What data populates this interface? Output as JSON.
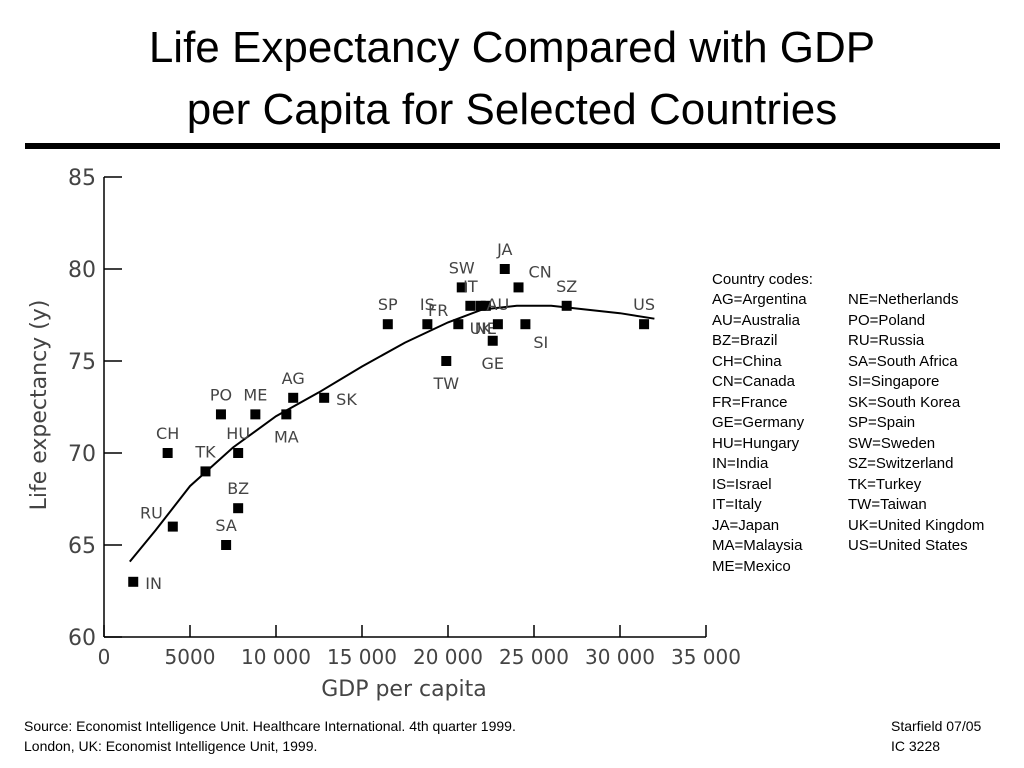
{
  "title": {
    "line1": "Life Expectancy Compared with GDP",
    "line2": "per Capita for Selected Countries"
  },
  "chart_data": {
    "type": "scatter",
    "xlabel": "GDP per capita",
    "ylabel": "Life expectancy (y)",
    "xlim": [
      0,
      35000
    ],
    "ylim": [
      60,
      85
    ],
    "x_ticks": [
      0,
      5000,
      10000,
      15000,
      20000,
      25000,
      30000,
      35000
    ],
    "x_tick_labels": [
      "0",
      "5000",
      "10 000",
      "15 000",
      "20 000",
      "25 000",
      "30 000",
      "35 000"
    ],
    "y_ticks": [
      60,
      65,
      70,
      75,
      80,
      85
    ],
    "y_tick_labels": [
      "60",
      "65",
      "70",
      "75",
      "80",
      "85"
    ],
    "grid": false,
    "points": [
      {
        "label": "IN",
        "x": 1700,
        "y": 63.0,
        "label_side": "right"
      },
      {
        "label": "RU",
        "x": 4000,
        "y": 66.0,
        "label_side": "above-left"
      },
      {
        "label": "CH",
        "x": 3700,
        "y": 70.0,
        "label_side": "above"
      },
      {
        "label": "SA",
        "x": 7100,
        "y": 65.0,
        "label_side": "above"
      },
      {
        "label": "BZ",
        "x": 7800,
        "y": 67.0,
        "label_side": "above"
      },
      {
        "label": "TK",
        "x": 5900,
        "y": 69.0,
        "label_side": "above"
      },
      {
        "label": "HU",
        "x": 7800,
        "y": 70.0,
        "label_side": "above"
      },
      {
        "label": "PO",
        "x": 6800,
        "y": 72.1,
        "label_side": "above"
      },
      {
        "label": "ME",
        "x": 8800,
        "y": 72.1,
        "label_side": "above"
      },
      {
        "label": "MA",
        "x": 10600,
        "y": 72.1,
        "label_side": "below"
      },
      {
        "label": "AG",
        "x": 11000,
        "y": 73.0,
        "label_side": "above"
      },
      {
        "label": "SK",
        "x": 12800,
        "y": 73.0,
        "label_side": "right"
      },
      {
        "label": "SP",
        "x": 16500,
        "y": 77.0,
        "label_side": "above"
      },
      {
        "label": "IS",
        "x": 18800,
        "y": 77.0,
        "label_side": "above"
      },
      {
        "label": "TW",
        "x": 19900,
        "y": 75.0,
        "label_side": "below"
      },
      {
        "label": "FR",
        "x": 20600,
        "y": 77.0,
        "label_side": "above-left"
      },
      {
        "label": "SW",
        "x": 20800,
        "y": 79.0,
        "label_side": "above"
      },
      {
        "label": "IT",
        "x": 21300,
        "y": 78.0,
        "label_side": "above"
      },
      {
        "label": "UK",
        "x": 21900,
        "y": 78.0,
        "label_side": "below"
      },
      {
        "label": "NE",
        "x": 22200,
        "y": 78.0,
        "label_side": "below"
      },
      {
        "label": "GE",
        "x": 22600,
        "y": 76.1,
        "label_side": "below"
      },
      {
        "label": "JA",
        "x": 23300,
        "y": 80.0,
        "label_side": "above"
      },
      {
        "label": "AU",
        "x": 22900,
        "y": 77.0,
        "label_side": "above"
      },
      {
        "label": "CN",
        "x": 24100,
        "y": 79.0,
        "label_side": "above-right"
      },
      {
        "label": "SI",
        "x": 24500,
        "y": 77.0,
        "label_side": "below-right"
      },
      {
        "label": "SZ",
        "x": 26900,
        "y": 78.0,
        "label_side": "above"
      },
      {
        "label": "US",
        "x": 31400,
        "y": 77.0,
        "label_side": "above"
      }
    ],
    "trend_line": [
      [
        1500,
        64.1
      ],
      [
        3000,
        65.8
      ],
      [
        5000,
        68.2
      ],
      [
        7500,
        70.3
      ],
      [
        10000,
        72.0
      ],
      [
        12500,
        73.3
      ],
      [
        15000,
        74.7
      ],
      [
        17500,
        76.0
      ],
      [
        20000,
        77.1
      ],
      [
        22000,
        77.8
      ],
      [
        24000,
        78.0
      ],
      [
        26000,
        78.0
      ],
      [
        28000,
        77.8
      ],
      [
        30000,
        77.6
      ],
      [
        32000,
        77.3
      ]
    ]
  },
  "legend": {
    "title": "Country codes:",
    "left": [
      "AG=Argentina",
      "AU=Australia",
      "BZ=Brazil",
      "CH=China",
      "CN=Canada",
      "FR=France",
      "GE=Germany",
      "HU=Hungary",
      "IN=India",
      "IS=Israel",
      "IT=Italy",
      "JA=Japan",
      "MA=Malaysia",
      "ME=Mexico"
    ],
    "right": [
      "NE=Netherlands",
      "PO=Poland",
      "RU=Russia",
      "SA=South Africa",
      "SI=Singapore",
      "SK=South Korea",
      "SP=Spain",
      "SW=Sweden",
      "SZ=Switzerland",
      "TK=Turkey",
      "TW=Taiwan",
      "UK=United Kingdom",
      "US=United States"
    ]
  },
  "footer": {
    "source_line1": "Source: Economist Intelligence Unit. Healthcare International. 4th quarter 1999.",
    "source_line2": "London, UK: Economist Intelligence Unit, 1999.",
    "credit_line1": "Starfield 07/05",
    "credit_line2": "IC 3228"
  }
}
